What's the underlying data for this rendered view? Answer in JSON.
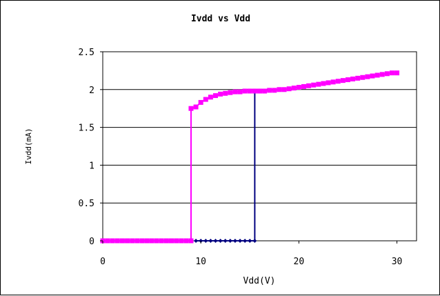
{
  "chart_data": {
    "type": "line",
    "title": "Ivdd vs Vdd",
    "xlabel": "Vdd(V)",
    "ylabel": "Ivdd(mA)",
    "xlim": [
      0,
      32
    ],
    "ylim": [
      0,
      2.5
    ],
    "xticks": [
      0,
      10,
      20,
      30
    ],
    "xtick_labels": [
      "0",
      "10",
      "20",
      "30"
    ],
    "yticks": [
      0,
      0.5,
      1,
      1.5,
      2,
      2.5
    ],
    "ytick_labels": [
      "0",
      "0.5",
      "1",
      "1.5",
      "2",
      "2.5"
    ],
    "grid": "horizontal",
    "legend": "none",
    "series": [
      {
        "color": "#ff00ff",
        "marker": "square",
        "x": [
          0,
          0.5,
          1,
          1.5,
          2,
          2.5,
          3,
          3.5,
          4,
          4.5,
          5,
          5.5,
          6,
          6.5,
          7,
          7.5,
          8,
          8.5,
          9,
          9,
          9.5,
          10,
          10.5,
          11,
          11.5,
          12,
          12.5,
          13,
          13.5,
          14,
          14.5,
          15,
          15.5,
          16,
          16.5,
          17,
          17.5,
          18,
          18.5,
          19,
          19.5,
          20,
          20.5,
          21,
          21.5,
          22,
          22.5,
          23,
          23.5,
          24,
          24.5,
          25,
          25.5,
          26,
          26.5,
          27,
          27.5,
          28,
          28.5,
          29,
          29.5,
          30
        ],
        "y": [
          0,
          0,
          0,
          0,
          0,
          0,
          0,
          0,
          0,
          0,
          0,
          0,
          0,
          0,
          0,
          0,
          0,
          0,
          0,
          1.75,
          1.77,
          1.83,
          1.87,
          1.9,
          1.92,
          1.94,
          1.95,
          1.96,
          1.97,
          1.97,
          1.98,
          1.98,
          1.98,
          1.98,
          1.98,
          1.99,
          1.99,
          2.0,
          2.0,
          2.01,
          2.02,
          2.03,
          2.04,
          2.05,
          2.06,
          2.07,
          2.08,
          2.09,
          2.1,
          2.11,
          2.12,
          2.13,
          2.14,
          2.15,
          2.16,
          2.17,
          2.18,
          2.19,
          2.2,
          2.21,
          2.22,
          2.22
        ]
      },
      {
        "color": "#000080",
        "marker": "diamond",
        "x": [
          9.5,
          10,
          10.5,
          11,
          11.5,
          12,
          12.5,
          13,
          13.5,
          14,
          14.5,
          15,
          15.5,
          15.5
        ],
        "y": [
          0,
          0,
          0,
          0,
          0,
          0,
          0,
          0,
          0,
          0,
          0,
          0,
          0,
          1.98
        ]
      }
    ]
  }
}
